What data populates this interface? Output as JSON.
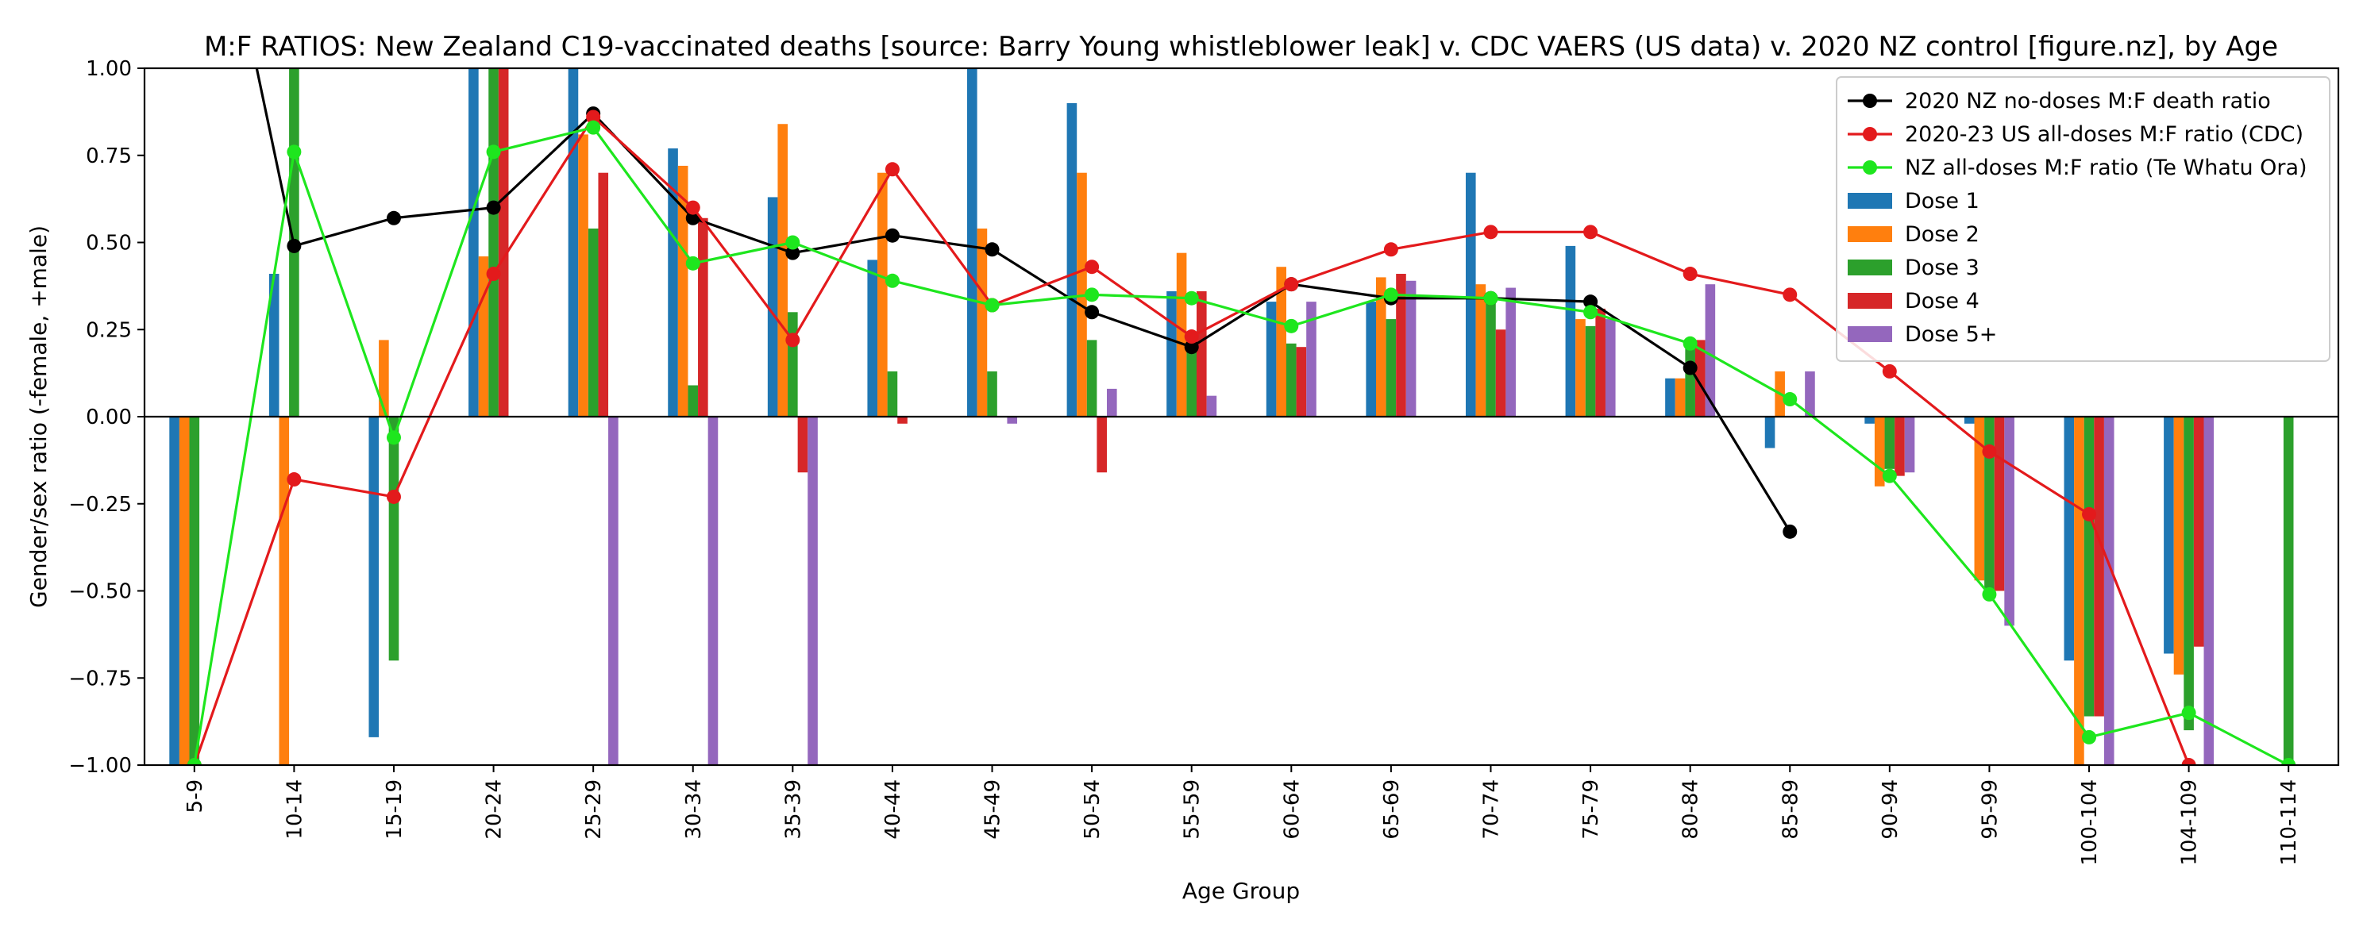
{
  "chart_data": {
    "type": "bar",
    "title": "M:F RATIOS: New Zealand C19-vaccinated deaths [source: Barry Young whistleblower leak] v. CDC VAERS (US data) v. 2020 NZ control [figure.nz], by Age",
    "xlabel": "Age Group",
    "ylabel": "Gender/sex ratio (-female, +male)",
    "ylim": [
      -1.0,
      1.0
    ],
    "yticks": [
      -1.0,
      -0.75,
      -0.5,
      -0.25,
      0.0,
      0.25,
      0.5,
      0.75,
      1.0
    ],
    "ytick_labels": [
      "−1.00",
      "−0.75",
      "−0.50",
      "−0.25",
      "0.00",
      "0.25",
      "0.50",
      "0.75",
      "1.00"
    ],
    "legend_position": "upper-right",
    "categories": [
      "5-9",
      "10-14",
      "15-19",
      "20-24",
      "25-29",
      "30-34",
      "35-39",
      "40-44",
      "45-49",
      "50-54",
      "55-59",
      "60-64",
      "65-69",
      "70-74",
      "75-79",
      "80-84",
      "85-89",
      "90-94",
      "95-99",
      "100-104",
      "104-109",
      "110-114"
    ],
    "bar_series": [
      {
        "name": "Dose 1",
        "color": "#1f77b4",
        "values": [
          -1.0,
          0.41,
          -0.92,
          1.0,
          1.0,
          0.77,
          0.63,
          0.45,
          1.0,
          0.9,
          0.36,
          0.33,
          0.33,
          0.7,
          0.49,
          0.11,
          -0.09,
          -0.02,
          -0.02,
          -0.7,
          -0.68,
          null
        ]
      },
      {
        "name": "Dose 2",
        "color": "#ff7f0e",
        "values": [
          -1.0,
          -1.0,
          0.22,
          0.46,
          0.81,
          0.72,
          0.84,
          0.7,
          0.54,
          0.7,
          0.47,
          0.43,
          0.4,
          0.38,
          0.28,
          0.11,
          0.13,
          -0.2,
          -0.47,
          -1.0,
          -0.74,
          null
        ]
      },
      {
        "name": "Dose 3",
        "color": "#2ca02c",
        "values": [
          -1.0,
          1.0,
          -0.7,
          1.0,
          0.54,
          0.09,
          0.3,
          0.13,
          0.13,
          0.22,
          0.22,
          0.21,
          0.28,
          0.35,
          0.26,
          0.22,
          null,
          -0.15,
          -0.52,
          -0.86,
          -0.9,
          -1.0
        ]
      },
      {
        "name": "Dose 4",
        "color": "#d62728",
        "values": [
          null,
          null,
          null,
          1.0,
          0.7,
          0.57,
          -0.16,
          -0.02,
          null,
          -0.16,
          0.36,
          0.2,
          0.41,
          0.25,
          0.31,
          0.22,
          null,
          -0.17,
          -0.5,
          -0.86,
          -0.66,
          null
        ]
      },
      {
        "name": "Dose 5+",
        "color": "#9467bd",
        "values": [
          null,
          null,
          null,
          null,
          -1.0,
          -1.0,
          -1.0,
          null,
          -0.02,
          0.08,
          0.06,
          0.33,
          0.39,
          0.37,
          0.28,
          0.38,
          0.13,
          -0.16,
          -0.6,
          -1.0,
          -1.0,
          null
        ]
      }
    ],
    "line_series": [
      {
        "name": "2020 NZ no-doses M:F death ratio",
        "color": "#000000",
        "values": [
          1.85,
          0.49,
          0.57,
          0.6,
          0.87,
          0.57,
          0.47,
          0.52,
          0.48,
          0.3,
          0.2,
          0.38,
          0.34,
          0.34,
          0.33,
          0.14,
          -0.33,
          null,
          null,
          null,
          null,
          null
        ]
      },
      {
        "name": "2020-23 US all-doses M:F ratio (CDC)",
        "color": "#e31a1c",
        "values": [
          -1.0,
          -0.18,
          -0.23,
          0.41,
          0.86,
          0.6,
          0.22,
          0.71,
          0.32,
          0.43,
          0.23,
          0.38,
          0.48,
          0.53,
          0.53,
          0.41,
          0.35,
          0.13,
          -0.1,
          -0.28,
          -1.0,
          null
        ]
      },
      {
        "name": "NZ all-doses M:F ratio (Te Whatu Ora)",
        "color": "#1ee61e",
        "values": [
          -1.0,
          0.76,
          -0.06,
          0.76,
          0.83,
          0.44,
          0.5,
          0.39,
          0.32,
          0.35,
          0.34,
          0.26,
          0.35,
          0.34,
          0.3,
          0.21,
          0.05,
          -0.17,
          -0.51,
          -0.92,
          -0.85,
          -1.0
        ]
      }
    ]
  }
}
